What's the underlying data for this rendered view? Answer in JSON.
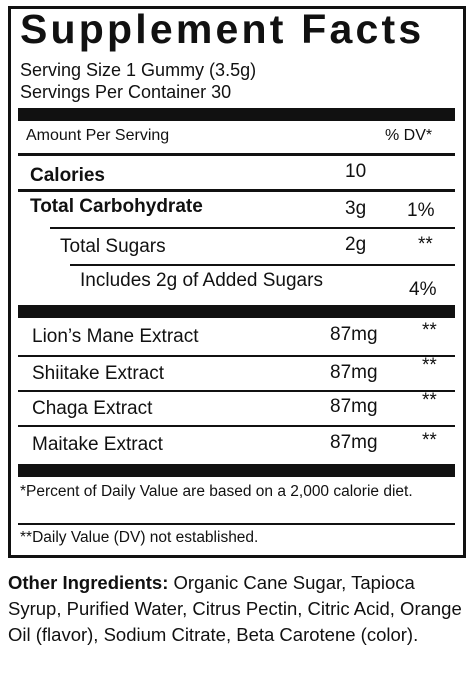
{
  "header": {
    "title": "Supplement Facts",
    "serving_size": "Serving Size 1 Gummy (3.5g)",
    "servings_per_container": "Servings Per Container 30"
  },
  "table": {
    "amount_header": "Amount Per Serving",
    "dv_header": "% DV*",
    "rows": [
      {
        "name": "Calories",
        "amount": "10"
      },
      {
        "name": "Total Carbohydrate",
        "amount": "3g",
        "dv": "1%"
      },
      {
        "name": "Total Sugars",
        "amount": "2g",
        "dv": "**"
      },
      {
        "name": "Includes 2g of Added Sugars",
        "dv": "4%"
      },
      {
        "name": "Lion’s Mane Extract",
        "amount": "87mg",
        "dv": "**"
      },
      {
        "name": "Shiitake Extract",
        "amount": "87mg",
        "dv": "**"
      },
      {
        "name": "Chaga Extract",
        "amount": "87mg",
        "dv": "**"
      },
      {
        "name": "Maitake Extract",
        "amount": "87mg",
        "dv": "**"
      }
    ]
  },
  "footnotes": [
    "*Percent of Daily Value are based on a 2,000 calorie diet.",
    "**Daily Value (DV) not established."
  ],
  "other_ingredients": {
    "label": "Other Ingredients:",
    "text": "Organic Cane Sugar, Tapioca Syrup, Purified Water, Citrus Pectin, Citric Acid, Orange Oil (flavor), Sodium Citrate, Beta Carotene (color)."
  }
}
